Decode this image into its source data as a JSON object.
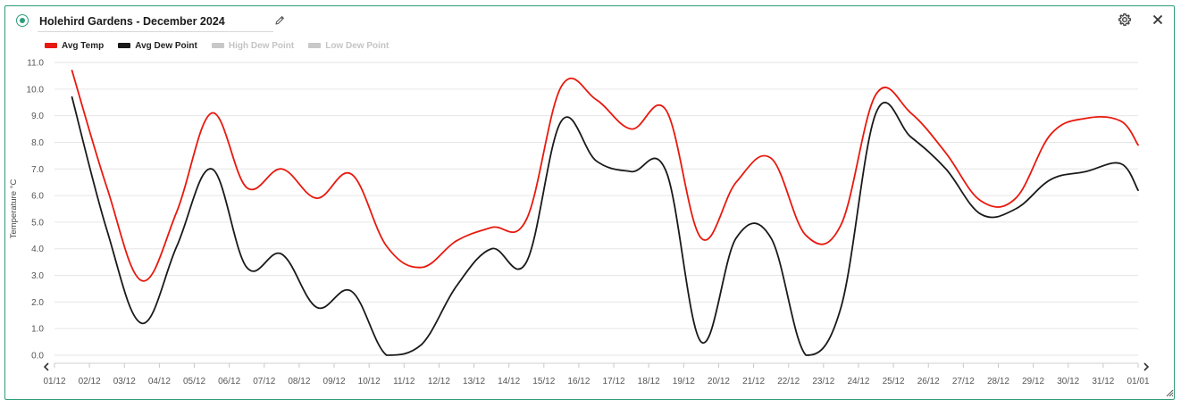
{
  "widget": {
    "title": "Holehird Gardens - December 2024",
    "status_color": "#2e9c7a",
    "icons": {
      "status": "status-dot-icon",
      "edit": "pencil-icon",
      "settings": "gear-icon",
      "close": "close-icon",
      "prev": "chevron-left-icon",
      "next": "chevron-right-icon",
      "resize": "resize-handle-icon"
    }
  },
  "legend": [
    {
      "label": "Avg Temp",
      "color": "#e8190e",
      "active": true
    },
    {
      "label": "Avg Dew Point",
      "color": "#1a1a1a",
      "active": true
    },
    {
      "label": "High Dew Point",
      "color": "#c8c8c8",
      "active": false
    },
    {
      "label": "Low Dew Point",
      "color": "#c8c8c8",
      "active": false
    }
  ],
  "chart_data": {
    "type": "line",
    "title": "",
    "xlabel": "",
    "ylabel": "Temperature °C",
    "ylim": [
      0,
      11
    ],
    "yticks": [
      "0.0",
      "1.0",
      "2.0",
      "3.0",
      "4.0",
      "5.0",
      "6.0",
      "7.0",
      "8.0",
      "9.0",
      "10.0",
      "11.0"
    ],
    "grid": true,
    "legend_position": "top-left",
    "categories": [
      "01/12",
      "02/12",
      "03/12",
      "04/12",
      "05/12",
      "06/12",
      "07/12",
      "08/12",
      "09/12",
      "10/12",
      "11/12",
      "12/12",
      "13/12",
      "14/12",
      "15/12",
      "16/12",
      "17/12",
      "18/12",
      "19/12",
      "20/12",
      "21/12",
      "22/12",
      "23/12",
      "24/12",
      "25/12",
      "26/12",
      "27/12",
      "28/12",
      "29/12",
      "30/12",
      "31/12",
      "01/01"
    ],
    "series": [
      {
        "name": "Avg Temp",
        "color": "#e8190e",
        "x": [
          0.5,
          1.5,
          2.5,
          3.5,
          4.5,
          5.5,
          6.5,
          7.5,
          8.5,
          9.5,
          10.5,
          11.5,
          12.5,
          13.5,
          14.5,
          15.5,
          16.5,
          17.5,
          18.5,
          19.5,
          20.5,
          21.5,
          22.5,
          23.5,
          24.5,
          25.5,
          26.5,
          27.5,
          28.5,
          29.5,
          30.5,
          31.0
        ],
        "values": [
          10.7,
          6.3,
          2.8,
          5.4,
          9.1,
          6.3,
          7.0,
          5.9,
          6.8,
          4.1,
          3.3,
          4.3,
          4.8,
          5.1,
          10.1,
          9.6,
          8.5,
          9.2,
          4.4,
          6.5,
          7.4,
          4.5,
          4.9,
          9.8,
          9.1,
          7.6,
          5.8,
          5.9,
          8.3,
          8.9,
          8.8,
          7.9
        ]
      },
      {
        "name": "Avg Dew Point",
        "color": "#1a1a1a",
        "x": [
          0.5,
          1.5,
          2.5,
          3.5,
          4.5,
          5.5,
          6.5,
          7.5,
          8.5,
          9.5,
          10.5,
          11.5,
          12.5,
          13.5,
          14.5,
          15.5,
          16.5,
          17.5,
          18.5,
          19.5,
          20.5,
          21.5,
          22.5,
          23.5,
          24.5,
          25.5,
          26.5,
          27.5,
          28.5,
          29.5,
          30.5,
          31.0
        ],
        "values": [
          9.7,
          4.7,
          1.2,
          4.1,
          7.0,
          3.3,
          3.8,
          1.8,
          2.4,
          0.0,
          0.4,
          2.6,
          4.0,
          3.5,
          8.8,
          7.3,
          6.9,
          6.9,
          0.5,
          4.4,
          4.4,
          0.0,
          1.8,
          9.1,
          8.2,
          7.0,
          5.3,
          5.5,
          6.6,
          6.9,
          7.2,
          6.2
        ]
      }
    ]
  }
}
